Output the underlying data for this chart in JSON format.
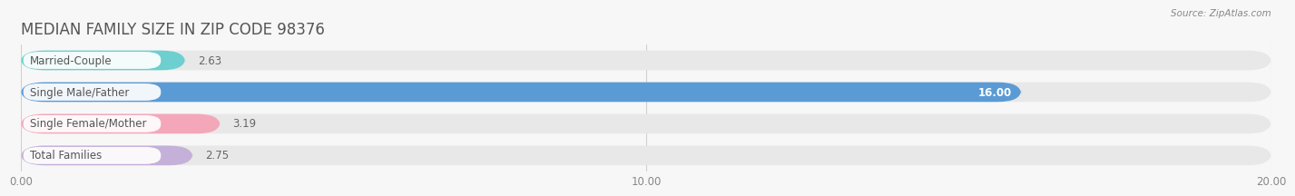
{
  "title": "MEDIAN FAMILY SIZE IN ZIP CODE 98376",
  "source": "Source: ZipAtlas.com",
  "categories": [
    "Married-Couple",
    "Single Male/Father",
    "Single Female/Mother",
    "Total Families"
  ],
  "values": [
    2.63,
    16.0,
    3.19,
    2.75
  ],
  "bar_colors": [
    "#6dcfcf",
    "#5b9bd5",
    "#f4a7b9",
    "#c4b0d8"
  ],
  "bar_bg_color": "#e8e8e8",
  "label_bg_color": "#ffffff",
  "label_text_color": "#555555",
  "value_label_color_inside": "#ffffff",
  "value_label_color_outside": "#666666",
  "xlim": [
    0,
    20
  ],
  "xticks": [
    0.0,
    10.0,
    20.0
  ],
  "xtick_labels": [
    "0.00",
    "10.00",
    "20.00"
  ],
  "title_fontsize": 12,
  "label_fontsize": 8.5,
  "value_fontsize": 8.5,
  "tick_fontsize": 8.5,
  "bar_height": 0.62,
  "background_color": "#f7f7f7",
  "grid_color": "#d0d0d0",
  "title_color": "#555555",
  "source_color": "#888888"
}
